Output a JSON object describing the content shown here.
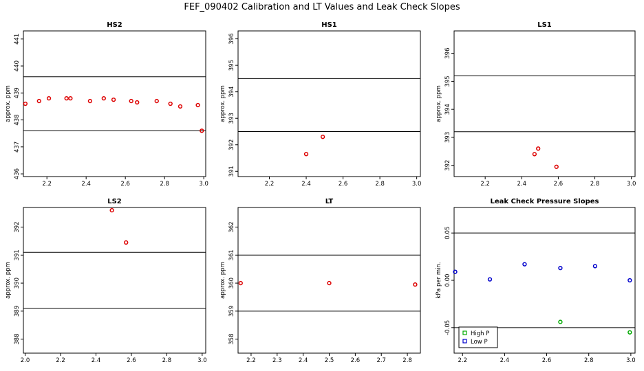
{
  "title": "FEF_090402  Calibration and LT Values and Leak Check Slopes",
  "chart_data": [
    {
      "type": "scatter",
      "title": "HS2",
      "ylabel": "approx. ppm",
      "xlim": [
        2.08,
        3.01
      ],
      "ylim": [
        435.9,
        441.3
      ],
      "xticks": [
        2.2,
        2.4,
        2.6,
        2.8,
        3.0
      ],
      "xtick_labels": [
        "2.2",
        "2.4",
        "2.6",
        "2.8",
        "3.0"
      ],
      "yticks": [
        436,
        437,
        438,
        439,
        440,
        441
      ],
      "ytick_labels": [
        "436",
        "437",
        "438",
        "439",
        "440",
        "441"
      ],
      "hlines": [
        439.6,
        437.6
      ],
      "series": [
        {
          "color": "#dd0000",
          "x": [
            2.09,
            2.16,
            2.21,
            2.3,
            2.32,
            2.42,
            2.49,
            2.54,
            2.63,
            2.66,
            2.76,
            2.83,
            2.88,
            2.97,
            2.99
          ],
          "y": [
            438.6,
            438.7,
            438.8,
            438.8,
            438.8,
            438.7,
            438.8,
            438.75,
            438.7,
            438.65,
            438.7,
            438.6,
            438.5,
            438.55,
            437.6
          ]
        }
      ]
    },
    {
      "type": "scatter",
      "title": "HS1",
      "ylabel": "approx. ppm",
      "xlim": [
        2.03,
        3.02
      ],
      "ylim": [
        390.8,
        396.3
      ],
      "xticks": [
        2.2,
        2.4,
        2.6,
        2.8,
        3.0
      ],
      "xtick_labels": [
        "2.2",
        "2.4",
        "2.6",
        "2.8",
        "3.0"
      ],
      "yticks": [
        391,
        392,
        393,
        394,
        395,
        396
      ],
      "ytick_labels": [
        "391",
        "392",
        "393",
        "394",
        "395",
        "396"
      ],
      "hlines": [
        394.5,
        392.5
      ],
      "series": [
        {
          "color": "#dd0000",
          "x": [
            2.4,
            2.49
          ],
          "y": [
            391.65,
            392.3
          ]
        }
      ]
    },
    {
      "type": "scatter",
      "title": "LS1",
      "ylabel": "approx. ppm",
      "xlim": [
        2.03,
        3.02
      ],
      "ylim": [
        391.6,
        396.8
      ],
      "xticks": [
        2.2,
        2.4,
        2.6,
        2.8,
        3.0
      ],
      "xtick_labels": [
        "2.2",
        "2.4",
        "2.6",
        "2.8",
        "3.0"
      ],
      "yticks": [
        392,
        393,
        394,
        395,
        396
      ],
      "ytick_labels": [
        "392",
        "393",
        "394",
        "395",
        "396"
      ],
      "hlines": [
        395.2,
        393.2
      ],
      "series": [
        {
          "color": "#dd0000",
          "x": [
            2.47,
            2.49,
            2.59
          ],
          "y": [
            392.4,
            392.6,
            391.95
          ]
        }
      ]
    },
    {
      "type": "scatter",
      "title": "LS2",
      "ylabel": "approx. ppm",
      "xlim": [
        1.99,
        3.02
      ],
      "ylim": [
        387.5,
        392.7
      ],
      "xticks": [
        2.0,
        2.2,
        2.4,
        2.6,
        2.8,
        3.0
      ],
      "xtick_labels": [
        "2.0",
        "2.2",
        "2.4",
        "2.6",
        "2.8",
        "3.0"
      ],
      "yticks": [
        388,
        389,
        390,
        391,
        392
      ],
      "ytick_labels": [
        "388",
        "389",
        "390",
        "391",
        "392"
      ],
      "hlines": [
        391.1,
        389.1
      ],
      "series": [
        {
          "color": "#dd0000",
          "x": [
            2.49,
            2.57
          ],
          "y": [
            392.6,
            391.45
          ]
        }
      ]
    },
    {
      "type": "scatter",
      "title": "LT",
      "ylabel": "approx. ppm",
      "xlim": [
        2.15,
        2.85
      ],
      "ylim": [
        357.5,
        362.7
      ],
      "xticks": [
        2.2,
        2.3,
        2.4,
        2.5,
        2.6,
        2.7,
        2.8
      ],
      "xtick_labels": [
        "2.2",
        "2.3",
        "2.4",
        "2.5",
        "2.6",
        "2.7",
        "2.8"
      ],
      "yticks": [
        358,
        359,
        360,
        361,
        362
      ],
      "ytick_labels": [
        "358",
        "359",
        "360",
        "361",
        "362"
      ],
      "hlines": [
        361.0,
        359.0
      ],
      "series": [
        {
          "color": "#dd0000",
          "x": [
            2.16,
            2.5,
            2.83
          ],
          "y": [
            360.0,
            360.0,
            359.95
          ]
        }
      ]
    },
    {
      "type": "scatter",
      "title": "Leak Check Pressure Slopes",
      "ylabel": "kPa per min.",
      "xlim": [
        2.16,
        3.02
      ],
      "ylim": [
        -0.077,
        0.077
      ],
      "xticks": [
        2.2,
        2.4,
        2.6,
        2.8,
        3.0
      ],
      "xtick_labels": [
        "2.2",
        "2.4",
        "2.6",
        "2.8",
        "3.0"
      ],
      "yticks": [
        -0.05,
        0.0,
        0.05
      ],
      "ytick_labels": [
        "-0.05",
        "0.00",
        "0.05"
      ],
      "hlines": [
        0.05,
        -0.05
      ],
      "legend_position": "bottom-left",
      "series": [
        {
          "name": "High P",
          "color": "#00aa00",
          "x": [
            2.33,
            2.665,
            2.995
          ],
          "y": [
            -0.052,
            -0.044,
            -0.055
          ]
        },
        {
          "name": "Low P",
          "color": "#0000cc",
          "x": [
            2.165,
            2.33,
            2.495,
            2.665,
            2.83,
            2.995
          ],
          "y": [
            0.009,
            0.001,
            0.017,
            0.013,
            0.015,
            0.0
          ]
        }
      ]
    }
  ]
}
